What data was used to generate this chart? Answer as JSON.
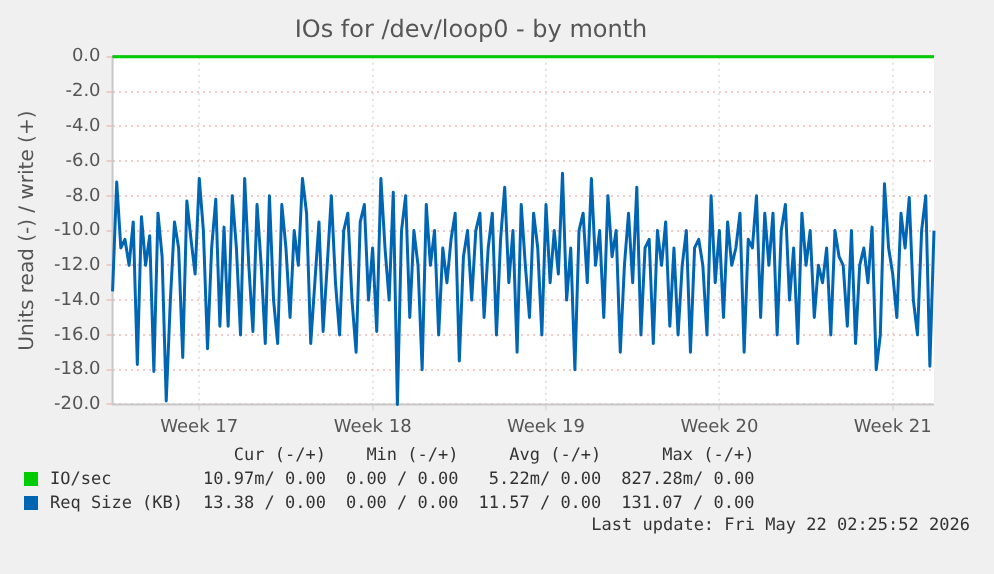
{
  "chart_data": {
    "type": "line",
    "title": "IOs for /dev/loop0 - by month",
    "ylabel": "Units read (-) / write (+)",
    "categories": [
      null,
      null,
      null,
      null,
      null,
      null,
      null,
      null,
      null,
      null,
      null,
      null,
      null,
      null,
      null,
      null,
      null,
      null,
      null,
      null,
      null,
      "Week 17",
      null,
      null,
      null,
      null,
      null,
      null,
      null,
      null,
      null,
      null,
      null,
      null,
      null,
      null,
      null,
      null,
      null,
      null,
      null,
      null,
      null,
      null,
      null,
      null,
      null,
      null,
      null,
      null,
      null,
      null,
      null,
      null,
      null,
      null,
      null,
      null,
      null,
      null,
      null,
      null,
      null,
      "Week 18",
      null,
      null,
      null,
      null,
      null,
      null,
      null,
      null,
      null,
      null,
      null,
      null,
      null,
      null,
      null,
      null,
      null,
      null,
      null,
      null,
      null,
      null,
      null,
      null,
      null,
      null,
      null,
      null,
      null,
      null,
      null,
      null,
      null,
      null,
      null,
      null,
      null,
      null,
      null,
      null,
      null,
      "Week 19",
      null,
      null,
      null,
      null,
      null,
      null,
      null,
      null,
      null,
      null,
      null,
      null,
      null,
      null,
      null,
      null,
      null,
      null,
      null,
      null,
      null,
      null,
      null,
      null,
      null,
      null,
      null,
      null,
      null,
      null,
      null,
      null,
      null,
      null,
      null,
      null,
      null,
      null,
      null,
      null,
      null,
      "Week 20",
      null,
      null,
      null,
      null,
      null,
      null,
      null,
      null,
      null,
      null,
      null,
      null,
      null,
      null,
      null,
      null,
      null,
      null,
      null,
      null,
      null,
      null,
      null,
      null,
      null,
      null,
      null,
      null,
      null,
      null,
      null,
      null,
      null,
      null,
      null,
      null,
      null,
      null,
      null,
      null,
      null,
      "Week 21",
      null,
      null,
      null,
      null,
      null,
      null,
      null,
      null,
      null,
      null
    ],
    "ylim": [
      -20,
      0
    ],
    "yticks": [
      {
        "value": -20,
        "label": "-20.0"
      },
      {
        "value": -18,
        "label": "-18.0"
      },
      {
        "value": -16,
        "label": "-16.0"
      },
      {
        "value": -14,
        "label": "-14.0"
      },
      {
        "value": -12,
        "label": "-12.0"
      },
      {
        "value": -10,
        "label": "-10.0"
      },
      {
        "value": -8,
        "label": "-8.0"
      },
      {
        "value": -6,
        "label": "-6.0"
      },
      {
        "value": -4,
        "label": "-4.0"
      },
      {
        "value": -2,
        "label": "-2.0"
      },
      {
        "value": 0,
        "label": "0.0"
      }
    ],
    "grid": true,
    "legend": "bottom",
    "marker": "none",
    "line_style": "solid",
    "series": [
      {
        "name": "IO/sec",
        "color": "#00cc00",
        "values": [
          0,
          0,
          0,
          0,
          0,
          0,
          0,
          0,
          0,
          0,
          0,
          0,
          0,
          0,
          0,
          0,
          0,
          0,
          0,
          0,
          0,
          0,
          0,
          0,
          0,
          0,
          0,
          0,
          0,
          0,
          0,
          0,
          0,
          0,
          0,
          0,
          0,
          0,
          0,
          0,
          0,
          0,
          0,
          0,
          0,
          0,
          0,
          0,
          0,
          0,
          0,
          0,
          0,
          0,
          0,
          0,
          0,
          0,
          0,
          0,
          0,
          0,
          0,
          0,
          0,
          0,
          0,
          0,
          0,
          0,
          0,
          0,
          0,
          0,
          0,
          0,
          0,
          0,
          0,
          0,
          0,
          0,
          0,
          0,
          0,
          0,
          0,
          0,
          0,
          0,
          0,
          0,
          0,
          0,
          0,
          0,
          0,
          0,
          0,
          0,
          0,
          0,
          0,
          0,
          0,
          0,
          0,
          0,
          0,
          0,
          0,
          0,
          0,
          0,
          0,
          0,
          0,
          0,
          0,
          0,
          0,
          0,
          0,
          0,
          0,
          0,
          0,
          0,
          0,
          0,
          0,
          0,
          0,
          0,
          0,
          0,
          0,
          0,
          0,
          0,
          0,
          0,
          0,
          0,
          0,
          0,
          0,
          0,
          0,
          0,
          0,
          0,
          0,
          0,
          0,
          0,
          0,
          0,
          0,
          0,
          0,
          0,
          0,
          0,
          0,
          0,
          0,
          0,
          0,
          0,
          0,
          0,
          0,
          0,
          0,
          0,
          0,
          0,
          0,
          0,
          0,
          0,
          0,
          0,
          0,
          0,
          0,
          0,
          0,
          0,
          0,
          0,
          0,
          0,
          0,
          0,
          0,
          0,
          0,
          0
        ]
      },
      {
        "name": "Req Size (KB)",
        "color": "#0066b3",
        "values": [
          -13.5,
          -7.2,
          -11,
          -10.5,
          -12,
          -9.5,
          -17.7,
          -9.2,
          -12,
          -10.3,
          -18.1,
          -9.0,
          -11.5,
          -19.8,
          -14,
          -9.5,
          -11,
          -17.3,
          -8.3,
          -10.5,
          -12.5,
          -7,
          -10,
          -16.8,
          -11,
          -8.2,
          -15.5,
          -9.8,
          -15.5,
          -8,
          -11,
          -16,
          -7,
          -12,
          -15.8,
          -8.5,
          -12,
          -16.5,
          -8,
          -14,
          -16.5,
          -8.5,
          -11,
          -15,
          -10,
          -12,
          -7,
          -9,
          -16.5,
          -13,
          -9.5,
          -15.8,
          -12,
          -8,
          -13,
          -16,
          -10,
          -9,
          -14,
          -17,
          -9.5,
          -8.5,
          -14,
          -11,
          -15.8,
          -7,
          -11,
          -14,
          -7.8,
          -20,
          -10,
          -8,
          -15,
          -10,
          -12,
          -18,
          -8.5,
          -12,
          -10,
          -16,
          -11,
          -13,
          -10.5,
          -9,
          -17.5,
          -11.5,
          -10,
          -14,
          -10,
          -9,
          -15,
          -11,
          -9,
          -16,
          -10.5,
          -7.5,
          -13,
          -10,
          -17,
          -8.5,
          -12,
          -15,
          -9,
          -11,
          -16,
          -8.5,
          -13,
          -10,
          -12.5,
          -6.7,
          -14,
          -11,
          -18,
          -10,
          -9,
          -13,
          -7,
          -12,
          -10,
          -15,
          -8,
          -11.5,
          -10,
          -17,
          -12,
          -9,
          -13,
          -7.5,
          -16,
          -11,
          -10.5,
          -16.5,
          -10,
          -12,
          -9.5,
          -15.5,
          -11,
          -16,
          -12,
          -10,
          -17,
          -11,
          -10.5,
          -12,
          -16,
          -8,
          -13,
          -10,
          -15,
          -9.5,
          -12,
          -11,
          -9,
          -17,
          -10.5,
          -11,
          -8,
          -15,
          -9,
          -12,
          -9,
          -16,
          -10,
          -8.5,
          -14,
          -11,
          -16.5,
          -9,
          -12,
          -10,
          -15,
          -12,
          -13,
          -11,
          -16,
          -10,
          -11.5,
          -12,
          -15.5,
          -10,
          -16.5,
          -12,
          -11,
          -13,
          -9.8,
          -18,
          -16,
          -7.3,
          -11,
          -12.5,
          -15,
          -9,
          -11,
          -8.1,
          -14,
          -16,
          -10,
          -8,
          -17.8,
          -10
        ]
      }
    ],
    "annotations": [
      "Cur (-/+)",
      "Min (-/+)",
      "Avg (-/+)",
      "Max (-/+)",
      "10.97m/ 0.00",
      "0.00 / 0.00",
      "5.22m/ 0.00",
      "827.28m/ 0.00",
      "13.38 / 0.00",
      "0.00 / 0.00",
      "11.57 / 0.00",
      "131.07 / 0.00",
      "Last update: Fri May 22 02:25:52 2026"
    ]
  }
}
